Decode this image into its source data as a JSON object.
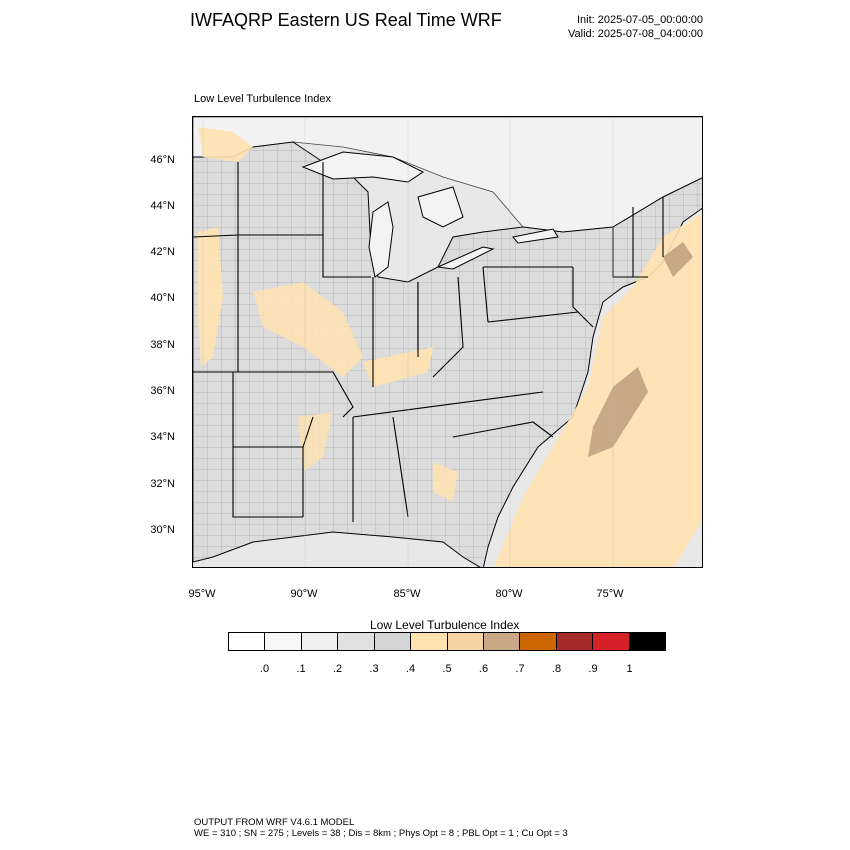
{
  "title": "IWFAQRP Eastern US Real Time WRF",
  "init": "Init: 2025-07-05_00:00:00",
  "valid": "Valid: 2025-07-08_04:00:00",
  "field_label": "Low Level Turbulence Index",
  "lat_labels": [
    "46°N",
    "44°N",
    "42°N",
    "40°N",
    "38°N",
    "36°N",
    "34°N",
    "32°N",
    "30°N"
  ],
  "lon_labels": [
    "95°W",
    "90°W",
    "85°W",
    "80°W",
    "75°W"
  ],
  "colorbar": {
    "title": "Low Level Turbulence Index",
    "colors": [
      "#ffffff",
      "#f7f7f7",
      "#efefef",
      "#e1e1e1",
      "#d5d5d5",
      "#ffe2b0",
      "#f5d3a2",
      "#c8a886",
      "#cc6600",
      "#a52a2a",
      "#d72128",
      "#000000"
    ],
    "labels": [
      ".0",
      ".1",
      ".2",
      ".3",
      ".4",
      ".5",
      ".6",
      ".7",
      ".8",
      ".9",
      "1"
    ]
  },
  "footer": {
    "line1": "OUTPUT FROM WRF V4.6.1 MODEL",
    "line2": "WE = 310 ; SN = 275 ; Levels = 38 ; Dis = 8km ; Phys Opt = 8 ; PBL Opt = 1 ; Cu Opt = 3"
  }
}
